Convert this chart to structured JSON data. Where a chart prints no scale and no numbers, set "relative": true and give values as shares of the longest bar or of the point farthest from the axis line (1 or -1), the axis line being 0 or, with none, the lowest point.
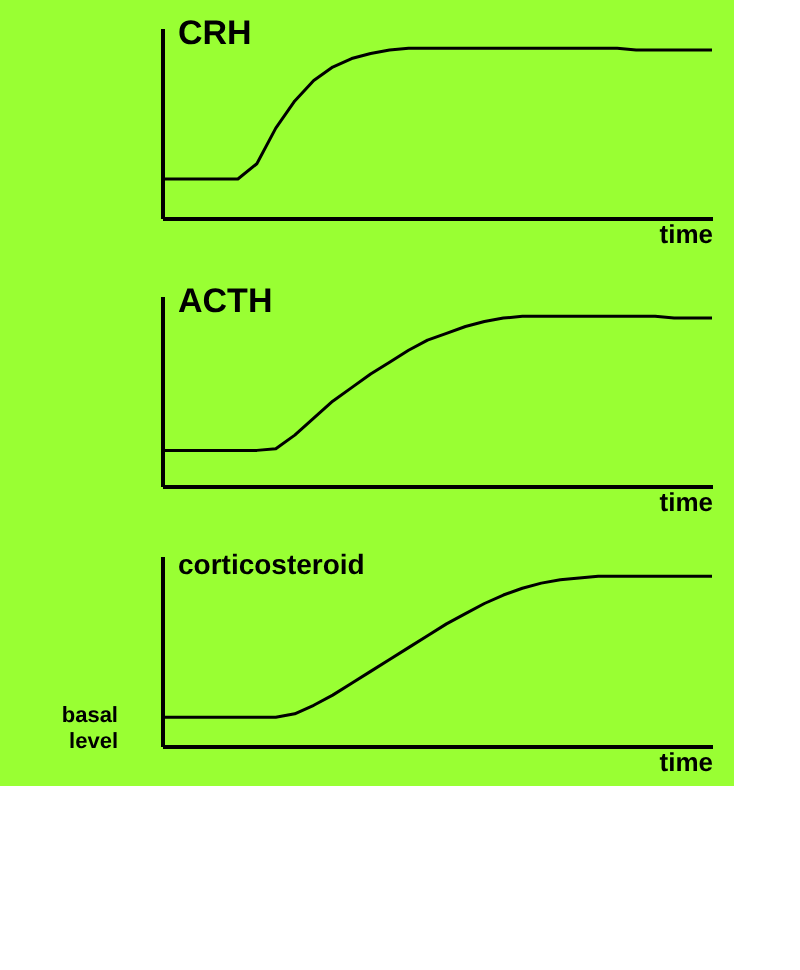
{
  "chart_data": [
    {
      "type": "line",
      "title": "CRH",
      "xlabel": "time",
      "relative": true,
      "grid": false,
      "legend": false,
      "marker": "none",
      "line_style": "solid",
      "tick_labels": false,
      "categories": [
        null,
        null,
        null,
        null,
        null,
        null,
        null,
        null,
        null,
        null,
        null,
        null,
        null,
        null,
        null,
        null,
        null,
        null,
        null,
        null,
        null,
        null,
        null,
        null,
        null,
        null,
        null,
        null,
        null,
        null
      ],
      "series": [
        {
          "color": "#000000",
          "values": [
            0.23,
            0.23,
            0.23,
            0.23,
            0.23,
            0.32,
            0.53,
            0.69,
            0.81,
            0.89,
            0.94,
            0.97,
            0.99,
            1.0,
            1.0,
            1.0,
            1.0,
            1.0,
            1.0,
            1.0,
            1.0,
            1.0,
            1.0,
            1.0,
            1.0,
            0.99,
            0.99,
            0.99,
            0.99,
            0.99
          ]
        }
      ]
    },
    {
      "type": "line",
      "title": "ACTH",
      "xlabel": "time",
      "relative": true,
      "grid": false,
      "legend": false,
      "marker": "none",
      "line_style": "solid",
      "tick_labels": false,
      "categories": [
        null,
        null,
        null,
        null,
        null,
        null,
        null,
        null,
        null,
        null,
        null,
        null,
        null,
        null,
        null,
        null,
        null,
        null,
        null,
        null,
        null,
        null,
        null,
        null,
        null,
        null,
        null,
        null,
        null,
        null
      ],
      "series": [
        {
          "color": "#000000",
          "values": [
            0.21,
            0.21,
            0.21,
            0.21,
            0.21,
            0.21,
            0.22,
            0.3,
            0.4,
            0.5,
            0.58,
            0.66,
            0.73,
            0.8,
            0.86,
            0.9,
            0.94,
            0.97,
            0.99,
            1.0,
            1.0,
            1.0,
            1.0,
            1.0,
            1.0,
            1.0,
            1.0,
            0.99,
            0.99,
            0.99
          ]
        }
      ]
    },
    {
      "type": "line",
      "title": "corticosteroid",
      "xlabel": "time",
      "relative": true,
      "grid": false,
      "legend": false,
      "marker": "none",
      "line_style": "solid",
      "tick_labels": false,
      "annotations": [
        "basal level"
      ],
      "categories": [
        null,
        null,
        null,
        null,
        null,
        null,
        null,
        null,
        null,
        null,
        null,
        null,
        null,
        null,
        null,
        null,
        null,
        null,
        null,
        null,
        null,
        null,
        null,
        null,
        null,
        null,
        null,
        null,
        null,
        null
      ],
      "series": [
        {
          "color": "#000000",
          "values": [
            0.17,
            0.17,
            0.17,
            0.17,
            0.17,
            0.17,
            0.17,
            0.19,
            0.24,
            0.3,
            0.37,
            0.44,
            0.51,
            0.58,
            0.65,
            0.72,
            0.78,
            0.84,
            0.89,
            0.93,
            0.96,
            0.98,
            0.99,
            1.0,
            1.0,
            1.0,
            1.0,
            1.0,
            1.0,
            1.0
          ]
        }
      ]
    }
  ]
}
